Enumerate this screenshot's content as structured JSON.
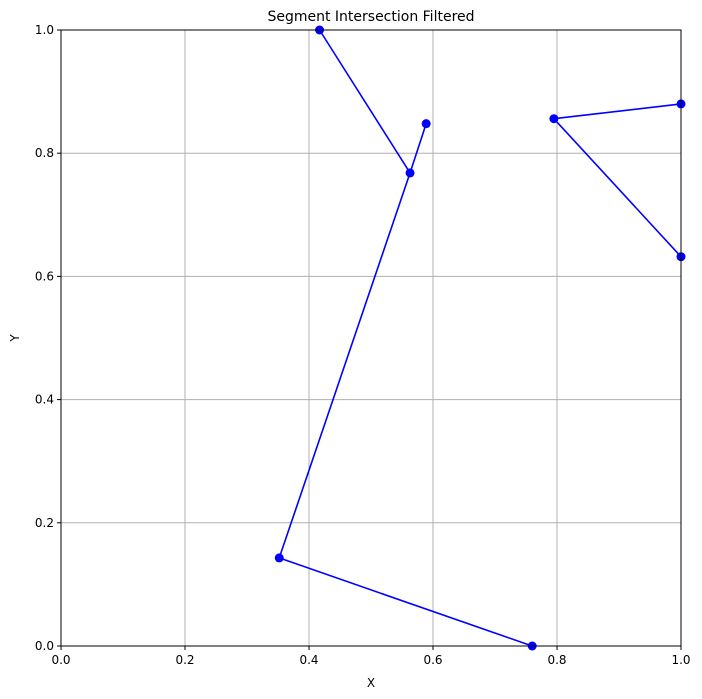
{
  "chart_data": {
    "type": "line",
    "title": "Segment Intersection Filtered",
    "xlabel": "X",
    "ylabel": "Y",
    "xlim": [
      0,
      1
    ],
    "ylim": [
      0,
      1
    ],
    "xticks": [
      0.0,
      0.2,
      0.4,
      0.6,
      0.8,
      1.0
    ],
    "yticks": [
      0.0,
      0.2,
      0.4,
      0.6,
      0.8,
      1.0
    ],
    "xtick_labels": [
      "0.0",
      "0.2",
      "0.4",
      "0.6",
      "0.8",
      "1.0"
    ],
    "ytick_labels": [
      "0.0",
      "0.2",
      "0.4",
      "0.6",
      "0.8",
      "1.0"
    ],
    "grid": true,
    "series_color": "#0000ff",
    "grid_color": "#b0b0b0",
    "segments": [
      [
        [
          0.417,
          1.0
        ],
        [
          0.563,
          0.768
        ]
      ],
      [
        [
          0.563,
          0.768
        ],
        [
          0.589,
          0.848
        ]
      ],
      [
        [
          0.563,
          0.768
        ],
        [
          0.352,
          0.143
        ]
      ],
      [
        [
          0.352,
          0.143
        ],
        [
          0.76,
          0.0
        ]
      ],
      [
        [
          0.795,
          0.856
        ],
        [
          1.0,
          0.88
        ]
      ],
      [
        [
          0.795,
          0.856
        ],
        [
          1.0,
          0.632
        ]
      ]
    ],
    "points": [
      [
        0.417,
        1.0
      ],
      [
        0.563,
        0.768
      ],
      [
        0.589,
        0.848
      ],
      [
        0.352,
        0.143
      ],
      [
        0.76,
        0.0
      ],
      [
        0.795,
        0.856
      ],
      [
        1.0,
        0.88
      ],
      [
        1.0,
        0.632
      ]
    ]
  }
}
